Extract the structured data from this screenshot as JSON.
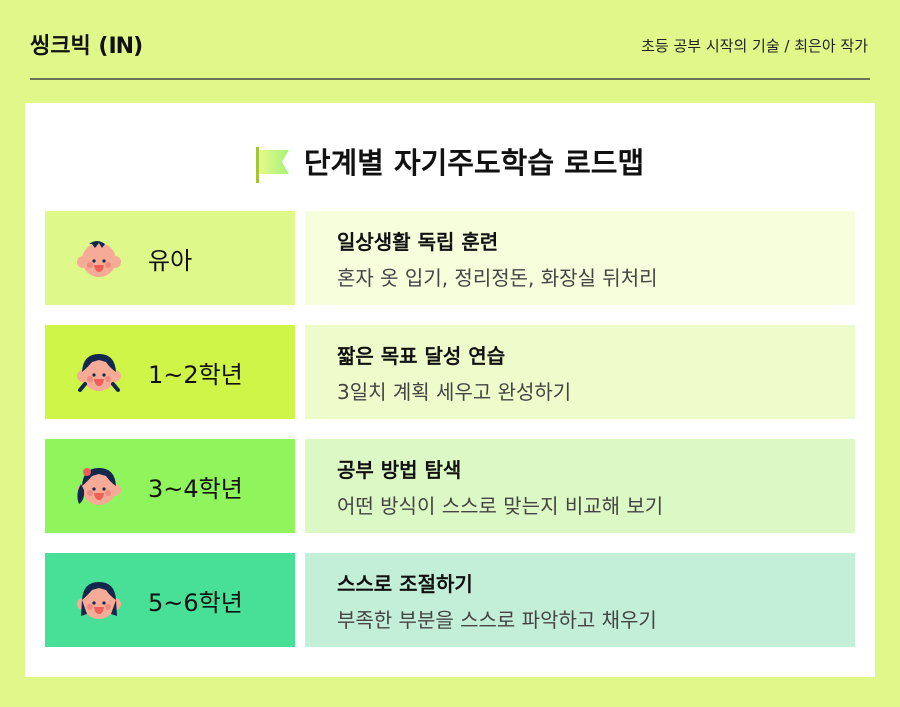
{
  "header": {
    "brand": "씽크빅",
    "brand_badge": "IN",
    "credit": "초등 공부 시작의 기술 / 최은아 작가"
  },
  "title": "단계별 자기주도학습 로드맵",
  "stages": [
    {
      "label": "유아",
      "heading": "일상생활 독립 훈련",
      "detail": "혼자 옷 입기, 정리정돈, 화장실 뒤처리",
      "label_color": "#def88a",
      "desc_color": "#f6fedc",
      "icon": "baby-face-icon"
    },
    {
      "label": "1~2학년",
      "heading": "짧은 목표 달성 연습",
      "detail": "3일치 계획 세우고 완성하기",
      "label_color": "#cff548",
      "desc_color": "#eefccb",
      "icon": "child-pigtails-face-icon"
    },
    {
      "label": "3~4학년",
      "heading": "공부 방법 탐색",
      "detail": "어떤 방식이 스스로 맞는지 비교해 보기",
      "label_color": "#90f55c",
      "desc_color": "#dcf8c4",
      "icon": "child-ponytail-face-icon"
    },
    {
      "label": "5~6학년",
      "heading": "스스로 조절하기",
      "detail": "부족한 부분을 스스로 파악하고 채우기",
      "label_color": "#47e096",
      "desc_color": "#c3efd8",
      "icon": "child-bob-face-icon"
    }
  ]
}
